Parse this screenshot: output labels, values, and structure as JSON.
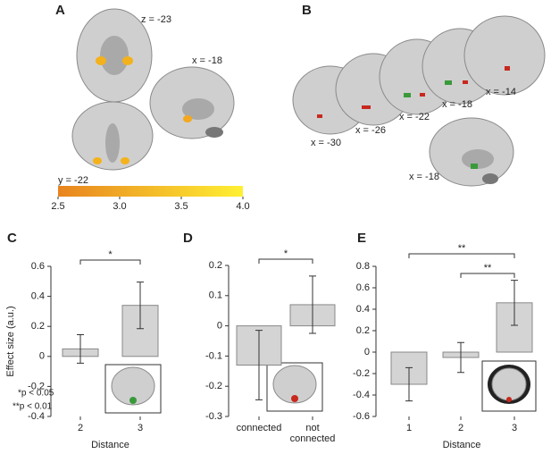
{
  "figure": {
    "panel_a": {
      "label": "A",
      "slices": [
        "z = -23",
        "x = -18",
        "y = -22"
      ],
      "colorbar": {
        "lim": [
          2.5,
          4
        ],
        "ticks": [
          2.5,
          {
            "value": 3,
            "label": "3.0"
          },
          3.5,
          {
            "value": 4,
            "label": "4.0"
          }
        ],
        "colors": [
          "#e8841f",
          "#fff033"
        ]
      }
    },
    "panel_b": {
      "label": "B",
      "slices": [
        "x = -30",
        "x = -26",
        "x = -22",
        "x = -18",
        "x = -14",
        "x = -18"
      ]
    }
  },
  "chart_data": [
    {
      "type": "bar",
      "panel": "C",
      "categories": [
        "2",
        "3"
      ],
      "values": [
        0.05,
        0.34
      ],
      "errors": [
        0.095,
        0.155
      ],
      "color": "#d4d4d4",
      "ylim": [
        -0.4,
        0.6
      ],
      "yticks": [
        -0.4,
        -0.2,
        0,
        0.2,
        0.4,
        0.6
      ],
      "xlabel": "Distance",
      "ylabel": "Effect size (a.u.)",
      "significance": [
        {
          "text": "*",
          "between": [
            "2",
            "3"
          ]
        }
      ],
      "notes": [
        "*p < 0.05",
        "**p < 0.01"
      ]
    },
    {
      "type": "bar",
      "panel": "D",
      "categories": [
        "connected",
        "not connected"
      ],
      "values": [
        -0.13,
        0.07
      ],
      "errors": [
        0.115,
        0.095
      ],
      "color": "#d4d4d4",
      "ylim": [
        -0.3,
        0.2
      ],
      "yticks": [
        -0.3,
        -0.2,
        -0.1,
        0,
        0.1,
        0.2
      ],
      "significance": [
        {
          "text": "*",
          "between": [
            "connected",
            "not connected"
          ]
        }
      ]
    },
    {
      "type": "bar",
      "panel": "E",
      "categories": [
        "1",
        "2",
        "3"
      ],
      "values": [
        -0.3,
        -0.05,
        0.46
      ],
      "errors": [
        0.155,
        0.14,
        0.21
      ],
      "color": "#d4d4d4",
      "ylim": [
        -0.6,
        0.8
      ],
      "yticks": [
        -0.6,
        -0.4,
        -0.2,
        0,
        0.2,
        0.4,
        0.6,
        0.8
      ],
      "xlabel": "Distance",
      "significance": [
        {
          "text": "**",
          "between": [
            "1",
            "3"
          ]
        },
        {
          "text": "**",
          "between": [
            "2",
            "3"
          ]
        }
      ]
    }
  ]
}
